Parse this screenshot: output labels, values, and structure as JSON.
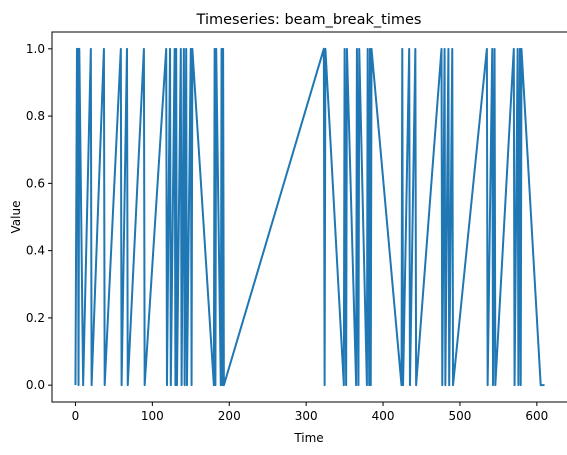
{
  "chart_data": {
    "type": "line",
    "title": "Timeseries: beam_break_times",
    "xlabel": "Time",
    "ylabel": "Value",
    "xlim": [
      -30.5,
      640.5
    ],
    "ylim": [
      -0.05,
      1.05
    ],
    "xticks": [
      0,
      100,
      200,
      300,
      400,
      500,
      600
    ],
    "yticks": [
      0.0,
      0.2,
      0.4,
      0.6,
      0.8,
      1.0
    ],
    "xtick_labels": [
      "0",
      "100",
      "200",
      "300",
      "400",
      "500",
      "600"
    ],
    "ytick_labels": [
      "0.0",
      "0.2",
      "0.4",
      "0.6",
      "0.8",
      "1.0"
    ],
    "grid": false,
    "color": "#1f77b4",
    "series": [
      {
        "x": [
          0,
          2,
          3,
          4,
          5,
          10,
          20,
          21,
          37,
          38,
          59,
          60,
          67,
          68,
          89,
          90,
          118,
          119,
          123,
          124,
          129,
          130,
          131,
          132,
          137,
          138,
          141,
          142,
          144,
          145,
          150,
          151,
          152,
          180,
          181,
          182,
          183,
          189,
          190,
          191,
          192,
          193,
          323,
          324,
          325,
          349,
          350,
          352,
          353,
          365,
          366,
          368,
          369,
          379,
          380,
          382,
          383,
          384,
          385,
          424,
          425,
          426,
          434,
          435,
          442,
          443,
          476,
          477,
          480,
          481,
          485,
          486,
          490,
          491,
          535,
          536,
          542,
          543,
          545,
          546,
          570,
          571,
          575,
          576,
          578,
          579,
          580,
          605,
          610
        ],
        "y": [
          0,
          1,
          1,
          0,
          1,
          0,
          1,
          0,
          1,
          0,
          1,
          0,
          1,
          0,
          1,
          0,
          1,
          0,
          1,
          0,
          1,
          0,
          1,
          0,
          1,
          0,
          1,
          0,
          1,
          0,
          1,
          0,
          1,
          0,
          1,
          0,
          1,
          0,
          1,
          0,
          1,
          0,
          1,
          0,
          1,
          0,
          1,
          0,
          1,
          0,
          1,
          0,
          1,
          0,
          1,
          0,
          1,
          0,
          1,
          0,
          1,
          0,
          1,
          0,
          1,
          0,
          1,
          0,
          1,
          0,
          1,
          0,
          1,
          0,
          1,
          0,
          1,
          0,
          1,
          0,
          1,
          0,
          1,
          0,
          1,
          0,
          1,
          0,
          0
        ]
      }
    ]
  }
}
